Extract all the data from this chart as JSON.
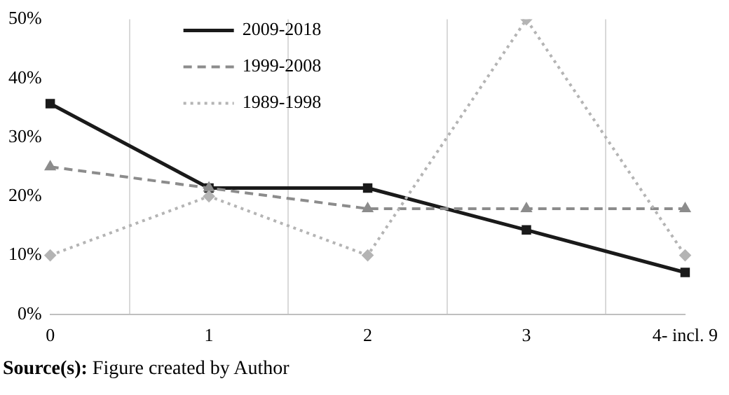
{
  "chart_data": {
    "type": "line",
    "categories": [
      "0",
      "1",
      "2",
      "3",
      "4- incl. 9"
    ],
    "series": [
      {
        "name": "2009-2018",
        "color": "#1a1a1a",
        "values": [
          35.7,
          21.4,
          21.4,
          14.3,
          7.1
        ],
        "marker": "square",
        "line_style": "solid"
      },
      {
        "name": "1999-2008",
        "color": "#8c8c8c",
        "values": [
          25,
          21.4,
          17.9,
          17.9,
          17.9
        ],
        "marker": "triangle",
        "line_style": "dashed"
      },
      {
        "name": "1989-1998",
        "color": "#b4b4b4",
        "values": [
          10,
          20,
          10,
          50,
          10
        ],
        "marker": "diamond",
        "line_style": "dotted"
      }
    ],
    "ylim": [
      0,
      50
    ],
    "yticks": [
      {
        "value": 0,
        "label": "0%"
      },
      {
        "value": 10,
        "label": "10%"
      },
      {
        "value": 20,
        "label": "20%"
      },
      {
        "value": 30,
        "label": "30%"
      },
      {
        "value": 40,
        "label": "40%"
      },
      {
        "value": 50,
        "label": "50%"
      }
    ],
    "grid": "x",
    "legend": "top left",
    "annotations": [
      "Source(s): Figure created by Author"
    ]
  }
}
